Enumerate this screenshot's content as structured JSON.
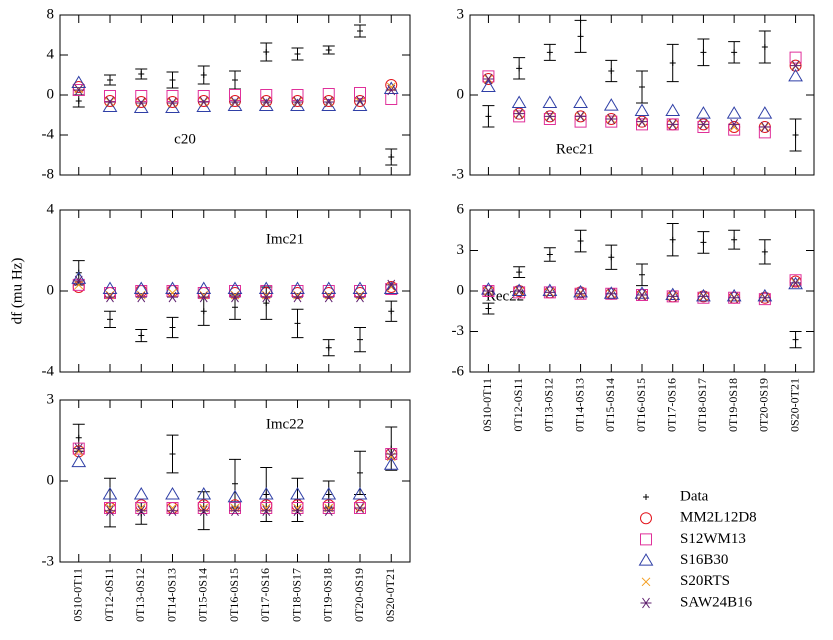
{
  "chart_data": [
    {
      "type": "errorscatter",
      "title": "c20",
      "ylim": [
        -8,
        8
      ],
      "yticks": [
        -8,
        -4,
        0,
        4,
        8
      ],
      "series": [
        {
          "values": [
            -0.6,
            1.5,
            2.1,
            1.5,
            2.0,
            1.5,
            4.3,
            4.1,
            4.5,
            6.4,
            -6.2
          ],
          "errors": [
            0.6,
            0.5,
            0.5,
            0.8,
            0.9,
            0.9,
            0.9,
            0.6,
            0.4,
            0.6,
            0.8
          ]
        },
        {
          "values": [
            0.8,
            -0.6,
            -0.7,
            -0.7,
            -0.6,
            -0.6,
            -0.6,
            -0.6,
            -0.6,
            -0.6,
            1.0
          ]
        },
        {
          "values": [
            0.5,
            -0.1,
            -0.1,
            -0.1,
            -0.1,
            0,
            0,
            0,
            0.1,
            0.2,
            -0.4
          ]
        },
        {
          "values": [
            1.2,
            -1.2,
            -1.3,
            -1.3,
            -1.2,
            -1.1,
            -1.1,
            -1.1,
            -1.1,
            -1.1,
            0.6
          ]
        },
        {
          "values": [
            0.6,
            -0.7,
            -0.8,
            -0.8,
            -0.7,
            -0.7,
            -0.7,
            -0.7,
            -0.7,
            -0.7,
            0.8
          ]
        },
        {
          "values": [
            0.5,
            -0.7,
            -0.8,
            -0.8,
            -0.7,
            -0.7,
            -0.7,
            -0.7,
            -0.7,
            -0.6,
            0.5
          ]
        }
      ]
    },
    {
      "type": "errorscatter",
      "title": "Rec21",
      "ylim": [
        -3,
        3
      ],
      "yticks": [
        -3,
        0,
        3
      ],
      "series": [
        {
          "values": [
            -0.8,
            1.0,
            1.6,
            2.2,
            0.9,
            0.3,
            1.2,
            1.6,
            1.6,
            1.8,
            -1.5
          ],
          "errors": [
            0.4,
            0.4,
            0.3,
            0.6,
            0.4,
            0.6,
            0.7,
            0.5,
            0.4,
            0.6,
            0.6
          ]
        },
        {
          "values": [
            0.6,
            -0.7,
            -0.8,
            -0.8,
            -0.9,
            -1.0,
            -1.1,
            -1.1,
            -1.2,
            -1.2,
            1.1
          ]
        },
        {
          "values": [
            0.7,
            -0.8,
            -0.9,
            -1.0,
            -1.0,
            -1.1,
            -1.1,
            -1.2,
            -1.3,
            -1.4,
            1.4
          ]
        },
        {
          "values": [
            0.3,
            -0.3,
            -0.3,
            -0.3,
            -0.4,
            -0.6,
            -0.6,
            -0.7,
            -0.7,
            -0.7,
            0.7
          ]
        },
        {
          "values": [
            0.6,
            -0.7,
            -0.8,
            -0.8,
            -0.9,
            -1.0,
            -1.1,
            -1.1,
            -1.2,
            -1.2,
            1.1
          ]
        },
        {
          "values": [
            0.6,
            -0.7,
            -0.8,
            -0.8,
            -0.9,
            -1.0,
            -1.1,
            -1.1,
            -1.1,
            -1.2,
            1.1
          ]
        }
      ]
    },
    {
      "type": "errorscatter",
      "title": "Imc21",
      "ylabel": "df (mu Hz)",
      "ylim": [
        -4,
        4
      ],
      "yticks": [
        -4,
        0,
        4
      ],
      "series": [
        {
          "values": [
            0.9,
            -1.4,
            -2.2,
            -1.8,
            -1.0,
            -0.8,
            -0.6,
            -1.6,
            -2.8,
            -2.4,
            -1.0
          ],
          "errors": [
            0.6,
            0.4,
            0.3,
            0.5,
            0.7,
            0.6,
            0.8,
            0.7,
            0.4,
            0.6,
            0.5
          ]
        },
        {
          "values": [
            0.2,
            -0.1,
            0,
            0,
            -0.1,
            -0.1,
            -0.1,
            -0.1,
            -0.1,
            -0.1,
            0.2
          ]
        },
        {
          "values": [
            0.3,
            -0.1,
            0,
            0,
            -0.1,
            0,
            0,
            0,
            0,
            0,
            0.1
          ]
        },
        {
          "values": [
            0.6,
            0.1,
            0.1,
            0.1,
            0.1,
            0.1,
            0.1,
            0.1,
            0.1,
            0.1,
            0.1
          ]
        },
        {
          "values": [
            0.3,
            -0.2,
            -0.2,
            -0.1,
            -0.2,
            -0.2,
            -0.2,
            -0.2,
            -0.2,
            -0.2,
            0.2
          ]
        },
        {
          "values": [
            0.5,
            -0.3,
            -0.3,
            -0.3,
            -0.3,
            -0.3,
            -0.3,
            -0.3,
            -0.3,
            -0.3,
            0.3
          ]
        }
      ]
    },
    {
      "type": "errorscatter",
      "title": "Rec22",
      "ylim": [
        -6,
        6
      ],
      "yticks": [
        -6,
        -3,
        0,
        3,
        6
      ],
      "categories": [
        "0S10-0T11",
        "0T12-0S11",
        "0T13-0S12",
        "0T14-0S13",
        "0T15-0S14",
        "0T16-0S15",
        "0T17-0S16",
        "0T18-0S17",
        "0T19-0S18",
        "0T20-0S19",
        "0S20-0T21"
      ],
      "series": [
        {
          "values": [
            -1.3,
            1.4,
            2.7,
            3.7,
            2.5,
            1.2,
            3.8,
            3.6,
            3.8,
            2.9,
            -3.6
          ],
          "errors": [
            0.4,
            0.4,
            0.5,
            0.8,
            0.9,
            0.8,
            1.2,
            0.8,
            0.7,
            0.9,
            0.6
          ]
        },
        {
          "values": [
            0,
            0,
            -0.1,
            -0.1,
            -0.2,
            -0.3,
            -0.4,
            -0.4,
            -0.5,
            -0.5,
            0.7
          ]
        },
        {
          "values": [
            0,
            -0.1,
            -0.1,
            -0.2,
            -0.2,
            -0.3,
            -0.4,
            -0.5,
            -0.5,
            -0.6,
            0.8
          ]
        },
        {
          "values": [
            0.1,
            0,
            0,
            -0.1,
            -0.2,
            -0.2,
            -0.3,
            -0.4,
            -0.4,
            -0.4,
            0.5
          ]
        },
        {
          "values": [
            0,
            0,
            -0.1,
            -0.1,
            -0.2,
            -0.3,
            -0.4,
            -0.4,
            -0.5,
            -0.5,
            0.6
          ]
        },
        {
          "values": [
            0,
            0,
            -0.1,
            -0.2,
            -0.2,
            -0.3,
            -0.4,
            -0.4,
            -0.5,
            -0.5,
            0.6
          ]
        }
      ]
    },
    {
      "type": "errorscatter",
      "title": "Imc22",
      "ylim": [
        -3,
        3
      ],
      "yticks": [
        -3,
        0,
        3
      ],
      "categories": [
        "0S10-0T11",
        "0T12-0S11",
        "0T13-0S12",
        "0T14-0S13",
        "0T15-0S14",
        "0T16-0S15",
        "0T17-0S16",
        "0T18-0S17",
        "0T19-0S18",
        "0T20-0S19",
        "0S20-0T21"
      ],
      "series": [
        {
          "values": [
            1.6,
            -0.8,
            -1.2,
            1.0,
            -1.1,
            -0.1,
            -0.5,
            -0.7,
            -0.5,
            0.3,
            1.2
          ],
          "errors": [
            0.5,
            0.9,
            0.4,
            0.7,
            0.7,
            0.9,
            1.0,
            0.8,
            0.5,
            0.8,
            0.8
          ]
        },
        {
          "values": [
            1.1,
            -1.0,
            -0.9,
            -1.0,
            -0.9,
            -0.9,
            -0.9,
            -0.9,
            -0.9,
            -0.9,
            1.0
          ]
        },
        {
          "values": [
            1.2,
            -1.0,
            -1.0,
            -1.0,
            -1.0,
            -1.0,
            -1.0,
            -1.0,
            -1.0,
            -1.0,
            1.0
          ]
        },
        {
          "values": [
            0.7,
            -0.5,
            -0.5,
            -0.5,
            -0.5,
            -0.6,
            -0.5,
            -0.5,
            -0.5,
            -0.5,
            0.6
          ]
        },
        {
          "values": [
            1.1,
            -1.0,
            -1.0,
            -1.0,
            -1.0,
            -1.0,
            -1.0,
            -1.0,
            -1.0,
            -1.0,
            0.9
          ]
        },
        {
          "values": [
            1.2,
            -1.1,
            -1.1,
            -1.1,
            -1.1,
            -1.1,
            -1.1,
            -1.1,
            -1.1,
            -1.0,
            1.0
          ]
        }
      ]
    }
  ],
  "legend": [
    {
      "name": "Data",
      "color": "#000000",
      "marker": "plus"
    },
    {
      "name": "MM2L12D8",
      "color": "#e3151d",
      "marker": "circle"
    },
    {
      "name": "S12WM13",
      "color": "#e0309a",
      "marker": "square"
    },
    {
      "name": "S16B30",
      "color": "#2f3fa6",
      "marker": "triangle"
    },
    {
      "name": "S20RTS",
      "color": "#f39c1a",
      "marker": "cross"
    },
    {
      "name": "SAW24B16",
      "color": "#5e1f6e",
      "marker": "asterisk"
    }
  ]
}
